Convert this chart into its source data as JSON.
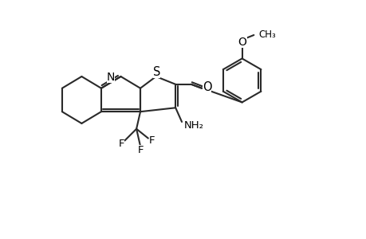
{
  "background_color": "#ffffff",
  "line_color": "#2a2a2a",
  "line_width": 1.5,
  "fig_width": 4.6,
  "fig_height": 3.0,
  "dpi": 100,
  "xlim": [
    0,
    46
  ],
  "ylim": [
    0,
    30
  ]
}
